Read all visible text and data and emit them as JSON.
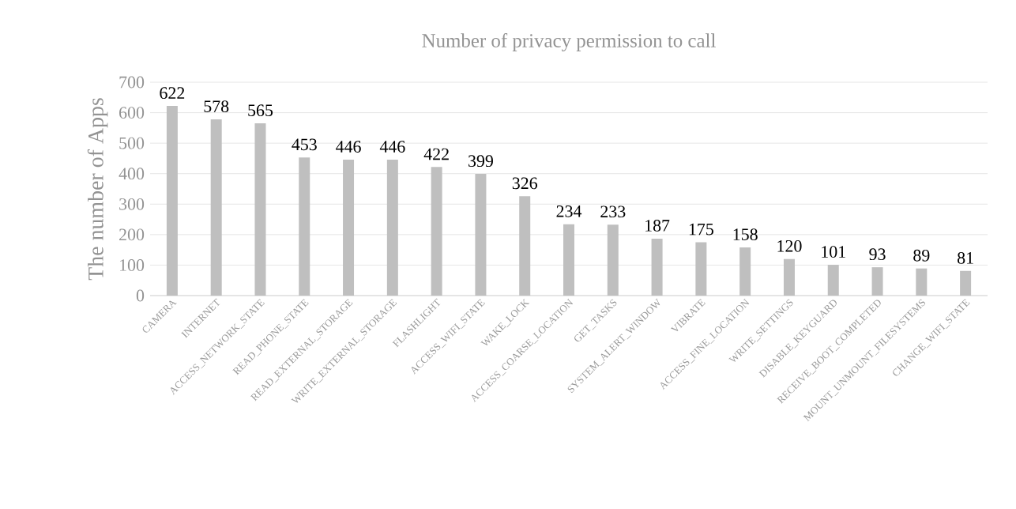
{
  "chart_data": {
    "type": "bar",
    "title": "Number of privacy permission to call",
    "ylabel": "The number of Apps",
    "categories": [
      "CAMERA",
      "INTERNET",
      "ACCESS_NETWORK_STATE",
      "READ_PHONE_STATE",
      "READ_EXTERNAL_STORAGE",
      "WRITE_EXTERNAL_STORAGE",
      "FLASHLIGHT",
      "ACCESS_WIFI_STATE",
      "WAKE_LOCK",
      "ACCESS_COARSE_LOCATION",
      "GET_TASKS",
      "SYSTEM_ALERT_WINDOW",
      "VIBRATE",
      "ACCESS_FINE_LOCATION",
      "WRITE_SETTINGS",
      "DISABLE_KEYGUARD",
      "RECEIVE_BOOT_COMPLETED",
      "MOUNT_UNMOUNT_FILESYSTEMS",
      "CHANGE_WIFI_STATE"
    ],
    "values": [
      622,
      578,
      565,
      453,
      446,
      446,
      422,
      399,
      326,
      234,
      233,
      187,
      175,
      158,
      120,
      101,
      93,
      89,
      81
    ],
    "color": "#bfbfbf",
    "ylim": [
      0,
      700
    ],
    "yticks": [
      0,
      100,
      200,
      300,
      400,
      500,
      600,
      700
    ],
    "grid": "y",
    "data_labels": true
  }
}
